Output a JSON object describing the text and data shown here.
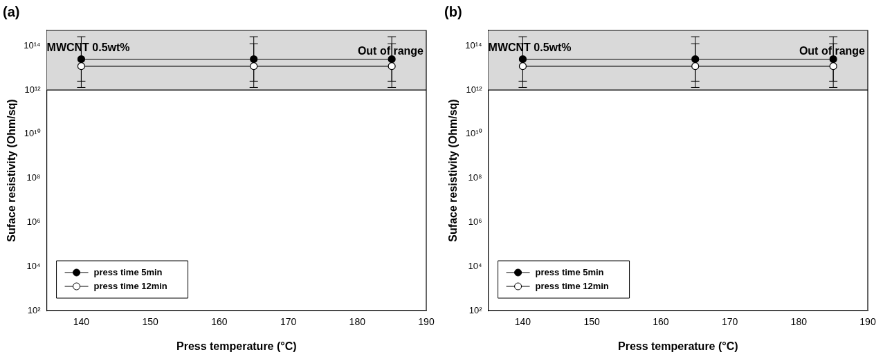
{
  "chart_data": [
    {
      "type": "line",
      "title": "(a)",
      "xlabel": "Press temperature (°C)",
      "ylabel": "Suface resistivity (Ohm/sq)",
      "x": [
        140,
        165,
        185
      ],
      "series": [
        {
          "name": "press time 5min",
          "color": "#000000",
          "values": [
            25000000000000.0,
            25000000000000.0,
            25000000000000.0
          ],
          "errors": [
            [
              1300000000000.0,
              260000000000000.0
            ],
            [
              1300000000000.0,
              260000000000000.0
            ],
            [
              1300000000000.0,
              260000000000000.0
            ]
          ]
        },
        {
          "name": "press time 12min",
          "color": "#ffffff",
          "values": [
            12000000000000.0,
            12000000000000.0,
            12000000000000.0
          ],
          "errors": [
            [
              2500000000000.0,
              125000000000000.0
            ],
            [
              2500000000000.0,
              125000000000000.0
            ],
            [
              2500000000000.0,
              125000000000000.0
            ]
          ]
        }
      ],
      "xlim": [
        135,
        190
      ],
      "xticks": [
        140,
        150,
        160,
        170,
        180,
        190
      ],
      "ylim": [
        100,
        500000000000000.0
      ],
      "yticks": [
        {
          "value": 100,
          "label": "10²"
        },
        {
          "value": 10000,
          "label": "10⁴"
        },
        {
          "value": 1000000,
          "label": "10⁶"
        },
        {
          "value": 100000000,
          "label": "10⁸"
        },
        {
          "value": 10000000000,
          "label": "10¹⁰"
        },
        {
          "value": 1000000000000,
          "label": "10¹²"
        },
        {
          "value": 100000000000000,
          "label": "10¹⁴"
        }
      ],
      "log": "y",
      "grid": false,
      "legend": "bottom left",
      "marker": "circle",
      "line_style": "solid",
      "bands": [
        {
          "axis": "y",
          "from": 1000000000000.0,
          "to": 500000000000000.0,
          "label": "Out of range",
          "color": "#d9d9d9"
        }
      ],
      "ref_lines": [
        {
          "axis": "y",
          "value": 1000000000000.0,
          "color": "#000000"
        }
      ],
      "annotations": [
        {
          "text": "MWCNT 0.5wt%",
          "x": 135,
          "y": 80000000000000.0
        }
      ]
    },
    {
      "type": "line",
      "title": "(b)",
      "xlabel": "Press temperature (°C)",
      "ylabel": "Suface resistivity (Ohm/sq)",
      "x": [
        140,
        165,
        185
      ],
      "series": [
        {
          "name": "press time 5min",
          "color": "#000000",
          "values": [
            25000000000000.0,
            25000000000000.0,
            25000000000000.0
          ],
          "errors": [
            [
              1300000000000.0,
              260000000000000.0
            ],
            [
              1300000000000.0,
              260000000000000.0
            ],
            [
              1300000000000.0,
              260000000000000.0
            ]
          ]
        },
        {
          "name": "press time 12min",
          "color": "#ffffff",
          "values": [
            12000000000000.0,
            12000000000000.0,
            12000000000000.0
          ],
          "errors": [
            [
              2500000000000.0,
              125000000000000.0
            ],
            [
              2500000000000.0,
              125000000000000.0
            ],
            [
              2500000000000.0,
              125000000000000.0
            ]
          ]
        }
      ],
      "xlim": [
        135,
        190
      ],
      "xticks": [
        140,
        150,
        160,
        170,
        180,
        190
      ],
      "ylim": [
        100,
        500000000000000.0
      ],
      "yticks": [
        {
          "value": 100,
          "label": "10²"
        },
        {
          "value": 10000,
          "label": "10⁴"
        },
        {
          "value": 1000000,
          "label": "10⁶"
        },
        {
          "value": 100000000,
          "label": "10⁸"
        },
        {
          "value": 10000000000,
          "label": "10¹⁰"
        },
        {
          "value": 1000000000000,
          "label": "10¹²"
        },
        {
          "value": 100000000000000,
          "label": "10¹⁴"
        }
      ],
      "log": "y",
      "grid": false,
      "legend": "bottom left",
      "marker": "circle",
      "line_style": "solid",
      "bands": [
        {
          "axis": "y",
          "from": 1000000000000.0,
          "to": 500000000000000.0,
          "label": "Out of range",
          "color": "#d9d9d9"
        }
      ],
      "ref_lines": [
        {
          "axis": "y",
          "value": 1000000000000.0,
          "color": "#000000"
        }
      ],
      "annotations": [
        {
          "text": "MWCNT 0.5wt%",
          "x": 135,
          "y": 80000000000000.0
        }
      ]
    }
  ]
}
